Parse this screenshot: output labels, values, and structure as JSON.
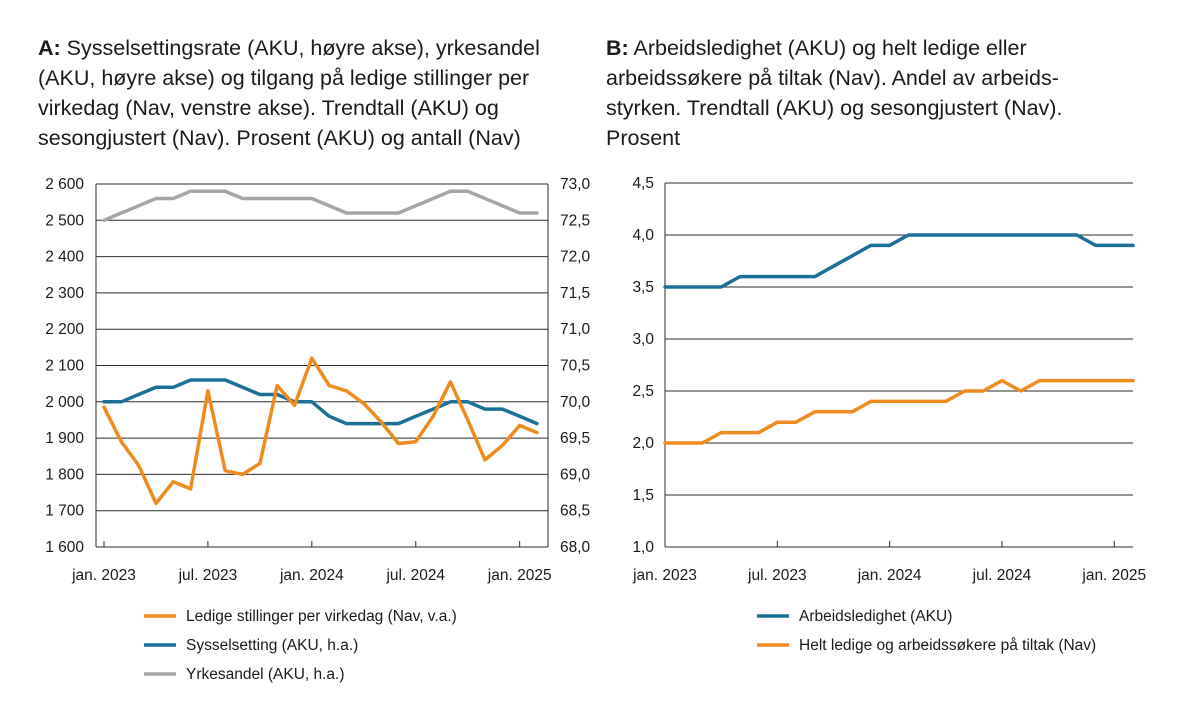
{
  "chart_data": [
    {
      "type": "line",
      "panel_label": "A:",
      "title": "Sysselsettingsrate (AKU, høyre akse), yrkesandel (AKU, høyre akse) og tilgang på ledige stillinger per virkedag (Nav, venstre akse). Trendtall (AKU) og sesongjustert (Nav). Prosent (AKU) og antall (Nav)",
      "x_tick_labels": [
        "jan. 2023",
        "jul. 2023",
        "jan. 2024",
        "jul. 2024",
        "jan. 2025"
      ],
      "left_axis": {
        "range": [
          1600,
          2600
        ],
        "tick_labels": [
          "1 600",
          "1 700",
          "1 800",
          "1 900",
          "2 000",
          "2 100",
          "2 200",
          "2 300",
          "2 400",
          "2 500",
          "2 600"
        ]
      },
      "right_axis": {
        "range": [
          68.0,
          73.0
        ],
        "tick_labels": [
          "68,0",
          "68,5",
          "69,0",
          "69,5",
          "70,0",
          "70,5",
          "71,0",
          "71,5",
          "72,0",
          "72,5",
          "73,0"
        ]
      },
      "series": [
        {
          "name": "Ledige stillinger per virkedag (Nav, v.a.)",
          "axis": "left",
          "color": "#ef8b1f",
          "values": [
            1985,
            1890,
            1825,
            1720,
            1780,
            1760,
            2030,
            1810,
            1800,
            1830,
            2045,
            1990,
            2120,
            2045,
            2030,
            1995,
            1945,
            1885,
            1890,
            1960,
            2055,
            1950,
            1840,
            1880,
            1935,
            1915
          ]
        },
        {
          "name": "Sysselsetting (AKU, h.a.)",
          "axis": "right",
          "color": "#1a7095",
          "values": [
            70.0,
            70.0,
            70.1,
            70.2,
            70.2,
            70.3,
            70.3,
            70.3,
            70.2,
            70.1,
            70.1,
            70.0,
            70.0,
            69.8,
            69.7,
            69.7,
            69.7,
            69.7,
            69.8,
            69.9,
            70.0,
            70.0,
            69.9,
            69.9,
            69.8,
            69.7
          ]
        },
        {
          "name": "Yrkesandel (AKU, h.a.)",
          "axis": "right",
          "color": "#a6a6a6",
          "values": [
            72.5,
            72.6,
            72.7,
            72.8,
            72.8,
            72.9,
            72.9,
            72.9,
            72.8,
            72.8,
            72.8,
            72.8,
            72.8,
            72.7,
            72.6,
            72.6,
            72.6,
            72.6,
            72.7,
            72.8,
            72.9,
            72.9,
            72.8,
            72.7,
            72.6,
            72.6
          ]
        }
      ]
    },
    {
      "type": "line",
      "panel_label": "B:",
      "title": "Arbeidsledighet (AKU) og helt ledige eller arbeidssøkere på tiltak (Nav). Andel av arbeidsstyrken. Trendtall (AKU) og sesongjustert (Nav). Prosent",
      "title_lines": [
        "Arbeidsledighet (AKU) og helt ledige eller",
        "arbeidssøkere på tiltak (Nav). Andel av arbeids-",
        "styrken. Trendtall (AKU) og sesongjustert (Nav).",
        "Prosent"
      ],
      "x_tick_labels": [
        "jan. 2023",
        "jul. 2023",
        "jan. 2024",
        "jul. 2024",
        "jan. 2025"
      ],
      "y_axis": {
        "range": [
          1.0,
          4.5
        ],
        "tick_labels": [
          "1,0",
          "1,5",
          "2,0",
          "2,5",
          "3,0",
          "3,5",
          "4,0",
          "4,5"
        ]
      },
      "series": [
        {
          "name": "Arbeidsledighet (AKU)",
          "color": "#1a7095",
          "values": [
            3.5,
            3.5,
            3.5,
            3.5,
            3.6,
            3.6,
            3.6,
            3.6,
            3.6,
            3.7,
            3.8,
            3.9,
            3.9,
            4.0,
            4.0,
            4.0,
            4.0,
            4.0,
            4.0,
            4.0,
            4.0,
            4.0,
            4.0,
            3.9,
            3.9,
            3.9
          ]
        },
        {
          "name": "Helt ledige og arbeidssøkere på tiltak (Nav)",
          "color": "#ef8b1f",
          "values": [
            2.0,
            2.0,
            2.0,
            2.1,
            2.1,
            2.1,
            2.2,
            2.2,
            2.3,
            2.3,
            2.3,
            2.4,
            2.4,
            2.4,
            2.4,
            2.4,
            2.5,
            2.5,
            2.6,
            2.5,
            2.6,
            2.6,
            2.6,
            2.6,
            2.6,
            2.6
          ]
        }
      ]
    }
  ]
}
